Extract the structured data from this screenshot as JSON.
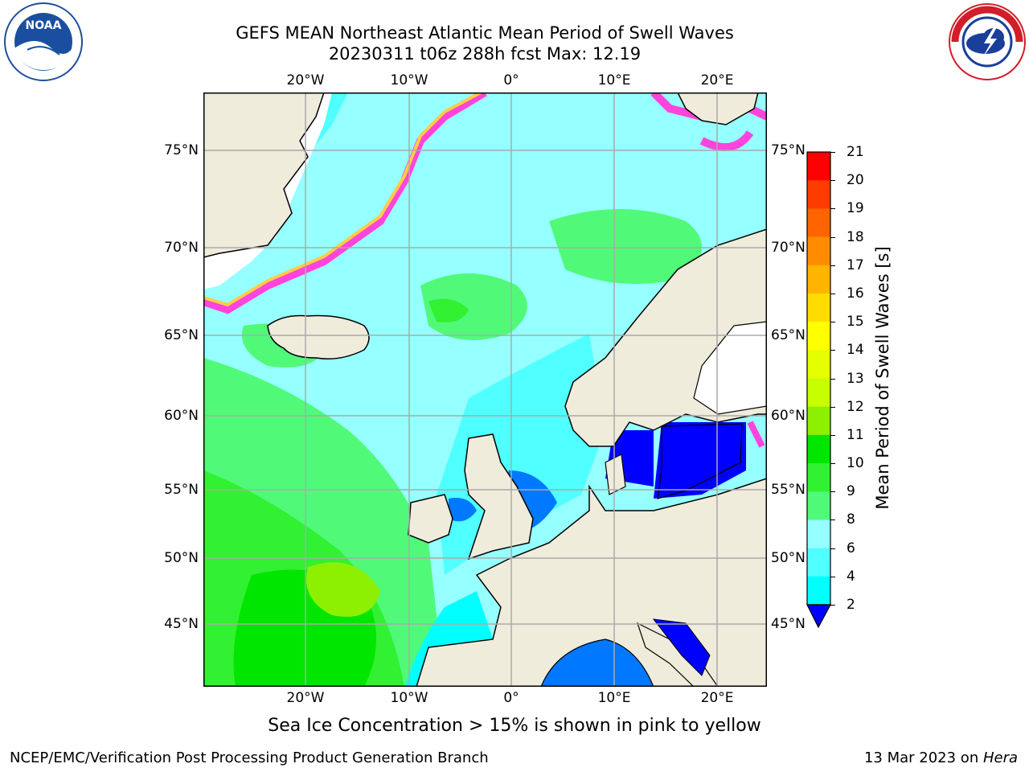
{
  "title": {
    "line1": "GEFS MEAN Northeast Atlantic Mean Period of Swell Waves",
    "line2": "20230311 t06z 288h fcst   Max: 12.19"
  },
  "logos": {
    "noaa": {
      "icon": "noaa-logo-icon",
      "text": "NOAA"
    },
    "nws": {
      "icon": "nws-logo-icon",
      "text": "NATIONAL WEATHER SERVICE"
    }
  },
  "map": {
    "lon_ticks": [
      "20°W",
      "10°W",
      "0°",
      "10°E",
      "20°E"
    ],
    "lat_ticks": [
      "75°N",
      "70°N",
      "65°N",
      "60°N",
      "55°N",
      "50°N",
      "45°N"
    ]
  },
  "colorbar": {
    "title": "Mean Period of Swell Waves [s]",
    "levels": [
      "21",
      "20",
      "19",
      "18",
      "17",
      "16",
      "15",
      "14",
      "13",
      "12",
      "11",
      "10",
      "9",
      "8",
      "6",
      "4",
      "2"
    ],
    "colors": [
      "#ff0000",
      "#ff3c00",
      "#ff6400",
      "#ff8c00",
      "#ffb400",
      "#ffdc00",
      "#ffff00",
      "#e6ff00",
      "#c8ff00",
      "#8cf000",
      "#00e600",
      "#32f032",
      "#50fa78",
      "#96ffff",
      "#50ffff",
      "#00ffff",
      "#00f0ff",
      "#0078ff",
      "#0000ff"
    ]
  },
  "caption": "Sea Ice Concentration > 15% is shown in pink to yellow",
  "footer": {
    "left": "NCEP/EMC/Verification Post Processing Product Generation Branch",
    "right_date": "13 Mar 2023 on ",
    "right_machine": "Hera"
  }
}
